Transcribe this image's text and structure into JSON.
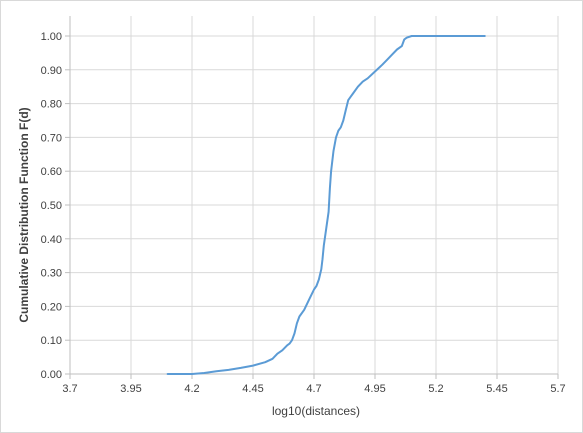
{
  "chart_data": {
    "type": "line",
    "title": "",
    "xlabel": "log10(distances)",
    "ylabel": "Cumulative Distribution Function F(d)",
    "xlim": [
      3.7,
      5.7
    ],
    "ylim": [
      0,
      1
    ],
    "xticks": [
      "3.7",
      "3.95",
      "4.2",
      "4.45",
      "4.7",
      "4.95",
      "5.2",
      "5.45",
      "5.7"
    ],
    "yticks": [
      "0.00",
      "0.10",
      "0.20",
      "0.30",
      "0.40",
      "0.50",
      "0.60",
      "0.70",
      "0.80",
      "0.90",
      "1.00"
    ],
    "grid": true,
    "legend": "none",
    "series": [
      {
        "color": "#5b9bd5",
        "x": [
          4.1,
          4.2,
          4.25,
          4.3,
          4.35,
          4.4,
          4.45,
          4.5,
          4.53,
          4.55,
          4.57,
          4.59,
          4.6,
          4.61,
          4.62,
          4.63,
          4.64,
          4.66,
          4.68,
          4.7,
          4.71,
          4.72,
          4.73,
          4.735,
          4.74,
          4.75,
          4.76,
          4.765,
          4.77,
          4.78,
          4.79,
          4.8,
          4.81,
          4.82,
          4.83,
          4.84,
          4.85,
          4.86,
          4.88,
          4.9,
          4.92,
          4.95,
          4.98,
          5.0,
          5.02,
          5.04,
          5.06,
          5.07,
          5.08,
          5.1,
          5.2,
          5.3,
          5.4
        ],
        "y": [
          0.0,
          0.0,
          0.003,
          0.008,
          0.012,
          0.018,
          0.025,
          0.035,
          0.045,
          0.06,
          0.07,
          0.085,
          0.09,
          0.1,
          0.12,
          0.15,
          0.17,
          0.19,
          0.22,
          0.25,
          0.26,
          0.28,
          0.31,
          0.34,
          0.38,
          0.43,
          0.48,
          0.55,
          0.6,
          0.66,
          0.7,
          0.72,
          0.73,
          0.75,
          0.78,
          0.81,
          0.82,
          0.83,
          0.85,
          0.865,
          0.875,
          0.895,
          0.915,
          0.93,
          0.945,
          0.96,
          0.97,
          0.99,
          0.995,
          1.0,
          1.0,
          1.0,
          1.0
        ]
      }
    ]
  }
}
